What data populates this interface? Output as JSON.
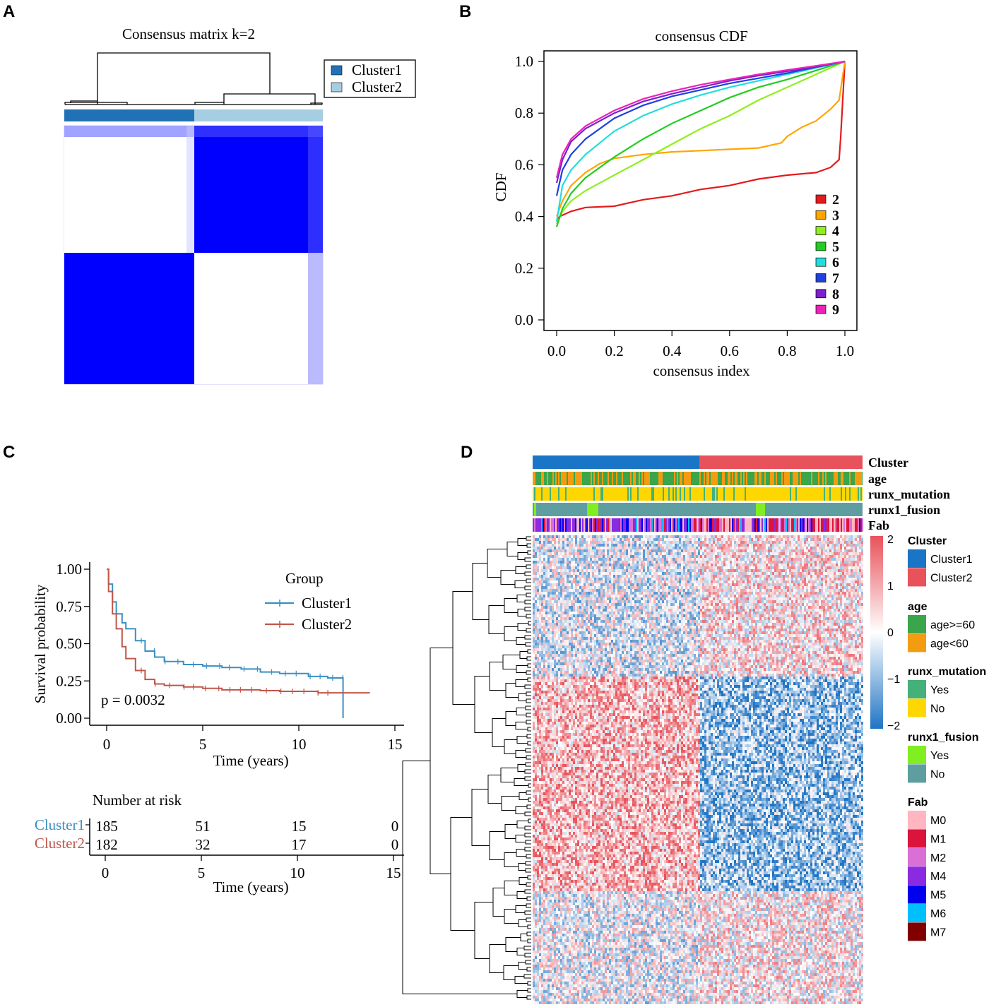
{
  "panel_labels": {
    "a": "A",
    "b": "B",
    "c": "C",
    "d": "D"
  },
  "chart_data": [
    {
      "panel": "A",
      "type": "heatmap",
      "title": "Consensus matrix k=2",
      "legend": [
        {
          "name": "Cluster1",
          "color": "#2171b5"
        },
        {
          "name": "Cluster2",
          "color": "#a6cee3"
        }
      ],
      "blocks": [
        {
          "rows": "Cluster1",
          "cols": "Cluster1",
          "value": 0
        },
        {
          "rows": "Cluster1",
          "cols": "Cluster2",
          "value": 1
        },
        {
          "rows": "Cluster2",
          "cols": "Cluster1",
          "value": 1
        },
        {
          "rows": "Cluster2",
          "cols": "Cluster2",
          "value": 0
        }
      ],
      "colors": {
        "high": "#0000ff",
        "low": "#ffffff"
      }
    },
    {
      "panel": "B",
      "type": "line",
      "title": "consensus CDF",
      "xlabel": "consensus index",
      "ylabel": "CDF",
      "xlim": [
        0,
        1
      ],
      "ylim": [
        0,
        1
      ],
      "xticks": [
        "0.0",
        "0.2",
        "0.4",
        "0.6",
        "0.8",
        "1.0"
      ],
      "yticks": [
        "0.0",
        "0.2",
        "0.4",
        "0.6",
        "0.8",
        "1.0"
      ],
      "series": [
        {
          "name": "2",
          "color": "#e41a1c",
          "x": [
            0,
            0.01,
            0.05,
            0.1,
            0.2,
            0.3,
            0.4,
            0.5,
            0.6,
            0.7,
            0.8,
            0.9,
            0.95,
            0.98,
            0.985,
            1.0
          ],
          "y": [
            0.38,
            0.4,
            0.42,
            0.435,
            0.44,
            0.465,
            0.48,
            0.505,
            0.52,
            0.545,
            0.56,
            0.57,
            0.59,
            0.62,
            0.7,
            1.0
          ]
        },
        {
          "name": "3",
          "color": "#ffa500",
          "x": [
            0,
            0.02,
            0.05,
            0.1,
            0.15,
            0.2,
            0.3,
            0.4,
            0.5,
            0.6,
            0.7,
            0.78,
            0.8,
            0.85,
            0.9,
            0.95,
            0.98,
            1.0
          ],
          "y": [
            0.4,
            0.46,
            0.52,
            0.57,
            0.605,
            0.625,
            0.64,
            0.65,
            0.655,
            0.66,
            0.665,
            0.685,
            0.71,
            0.745,
            0.77,
            0.815,
            0.85,
            1.0
          ]
        },
        {
          "name": "4",
          "color": "#90ee20",
          "x": [
            0,
            0.02,
            0.05,
            0.1,
            0.2,
            0.3,
            0.4,
            0.5,
            0.6,
            0.7,
            0.8,
            0.9,
            1.0
          ],
          "y": [
            0.37,
            0.42,
            0.46,
            0.5,
            0.56,
            0.62,
            0.68,
            0.74,
            0.79,
            0.85,
            0.9,
            0.95,
            1.0
          ]
        },
        {
          "name": "5",
          "color": "#22cc22",
          "x": [
            0,
            0.02,
            0.05,
            0.1,
            0.2,
            0.3,
            0.4,
            0.5,
            0.6,
            0.7,
            0.8,
            0.9,
            1.0
          ],
          "y": [
            0.36,
            0.43,
            0.49,
            0.55,
            0.63,
            0.7,
            0.76,
            0.81,
            0.86,
            0.9,
            0.93,
            0.965,
            1.0
          ]
        },
        {
          "name": "6",
          "color": "#22dddd",
          "x": [
            0,
            0.02,
            0.05,
            0.1,
            0.2,
            0.3,
            0.4,
            0.5,
            0.6,
            0.7,
            0.8,
            0.9,
            1.0
          ],
          "y": [
            0.38,
            0.52,
            0.58,
            0.64,
            0.73,
            0.79,
            0.835,
            0.87,
            0.9,
            0.925,
            0.95,
            0.975,
            1.0
          ]
        },
        {
          "name": "7",
          "color": "#2040dd",
          "x": [
            0,
            0.02,
            0.05,
            0.1,
            0.2,
            0.3,
            0.4,
            0.5,
            0.6,
            0.7,
            0.8,
            0.9,
            1.0
          ],
          "y": [
            0.48,
            0.58,
            0.64,
            0.7,
            0.78,
            0.83,
            0.865,
            0.89,
            0.915,
            0.935,
            0.955,
            0.978,
            1.0
          ]
        },
        {
          "name": "8",
          "color": "#7b20cc",
          "x": [
            0,
            0.02,
            0.05,
            0.1,
            0.2,
            0.3,
            0.4,
            0.5,
            0.6,
            0.7,
            0.8,
            0.9,
            1.0
          ],
          "y": [
            0.53,
            0.62,
            0.69,
            0.74,
            0.8,
            0.845,
            0.875,
            0.9,
            0.925,
            0.945,
            0.962,
            0.98,
            1.0
          ]
        },
        {
          "name": "9",
          "color": "#ee22bb",
          "x": [
            0,
            0.02,
            0.05,
            0.1,
            0.2,
            0.3,
            0.4,
            0.5,
            0.6,
            0.7,
            0.8,
            0.9,
            1.0
          ],
          "y": [
            0.55,
            0.64,
            0.7,
            0.75,
            0.81,
            0.855,
            0.885,
            0.91,
            0.93,
            0.95,
            0.967,
            0.983,
            1.0
          ]
        }
      ]
    },
    {
      "panel": "C",
      "type": "line",
      "ylabel": "Survival probability",
      "xlabel": "Time (years)",
      "xlim": [
        0,
        15
      ],
      "ylim": [
        0,
        1
      ],
      "xticks": [
        "0",
        "5",
        "10",
        "15"
      ],
      "yticks": [
        "0.00",
        "0.25",
        "0.50",
        "0.75",
        "1.00"
      ],
      "legend_title": "Group",
      "pvalue": "p = 0.0032",
      "series": [
        {
          "name": "Cluster1",
          "color": "#3a8fc4",
          "x": [
            0,
            0.1,
            0.3,
            0.5,
            0.8,
            1.0,
            1.5,
            2.0,
            2.5,
            3.0,
            4.0,
            5.0,
            6.0,
            7.0,
            8.0,
            9.0,
            10.0,
            10.5,
            11.5,
            12.3,
            12.3
          ],
          "y": [
            1.0,
            0.9,
            0.78,
            0.7,
            0.64,
            0.6,
            0.52,
            0.45,
            0.41,
            0.38,
            0.36,
            0.35,
            0.34,
            0.33,
            0.31,
            0.3,
            0.3,
            0.28,
            0.27,
            0.26,
            0.0
          ]
        },
        {
          "name": "Cluster2",
          "color": "#c0564a",
          "x": [
            0,
            0.1,
            0.3,
            0.5,
            0.8,
            1.0,
            1.5,
            2.0,
            2.5,
            3.0,
            4.0,
            5.0,
            6.0,
            7.0,
            8.0,
            9.0,
            10.0,
            11.0,
            12.0,
            13.7
          ],
          "y": [
            1.0,
            0.85,
            0.7,
            0.6,
            0.48,
            0.4,
            0.32,
            0.26,
            0.23,
            0.22,
            0.21,
            0.2,
            0.19,
            0.19,
            0.185,
            0.18,
            0.18,
            0.17,
            0.17,
            0.17
          ]
        }
      ],
      "risk_table": {
        "title": "Number at risk",
        "times": [
          "0",
          "5",
          "10",
          "15"
        ],
        "rows": [
          {
            "name": "Cluster1",
            "color": "#3a8fc4",
            "values": [
              "185",
              "51",
              "15",
              "0"
            ]
          },
          {
            "name": "Cluster2",
            "color": "#c0564a",
            "values": [
              "182",
              "32",
              "17",
              "0"
            ]
          }
        ]
      }
    },
    {
      "panel": "D",
      "type": "heatmap",
      "annotation_tracks": [
        "Cluster",
        "age",
        "runx_mutation",
        "runx1_fusion",
        "Fab"
      ],
      "scale": {
        "ticks": [
          "2",
          "1",
          "0",
          "−1",
          "−2"
        ],
        "high": "#e8525a",
        "mid": "#ffffff",
        "low": "#1f74c4"
      },
      "legends": [
        {
          "title": "Cluster",
          "items": [
            {
              "label": "Cluster1",
              "color": "#1b75c6"
            },
            {
              "label": "Cluster2",
              "color": "#e8525a"
            }
          ]
        },
        {
          "title": "age",
          "items": [
            {
              "label": "age>=60",
              "color": "#3aa54a"
            },
            {
              "label": "age<60",
              "color": "#f39c12"
            }
          ]
        },
        {
          "title": "runx_mutation",
          "items": [
            {
              "label": "Yes",
              "color": "#44b07a"
            },
            {
              "label": "No",
              "color": "#ffd700"
            }
          ]
        },
        {
          "title": "runx1_fusion",
          "items": [
            {
              "label": "Yes",
              "color": "#80ee20"
            },
            {
              "label": "No",
              "color": "#5f9ea0"
            }
          ]
        },
        {
          "title": "Fab",
          "items": [
            {
              "label": "M0",
              "color": "#ffb6c1"
            },
            {
              "label": "M1",
              "color": "#dc143c"
            },
            {
              "label": "M2",
              "color": "#da70d6"
            },
            {
              "label": "M4",
              "color": "#8a2be2"
            },
            {
              "label": "M5",
              "color": "#0000ee"
            },
            {
              "label": "M6",
              "color": "#00bfff"
            },
            {
              "label": "M7",
              "color": "#800000"
            }
          ]
        }
      ]
    }
  ]
}
